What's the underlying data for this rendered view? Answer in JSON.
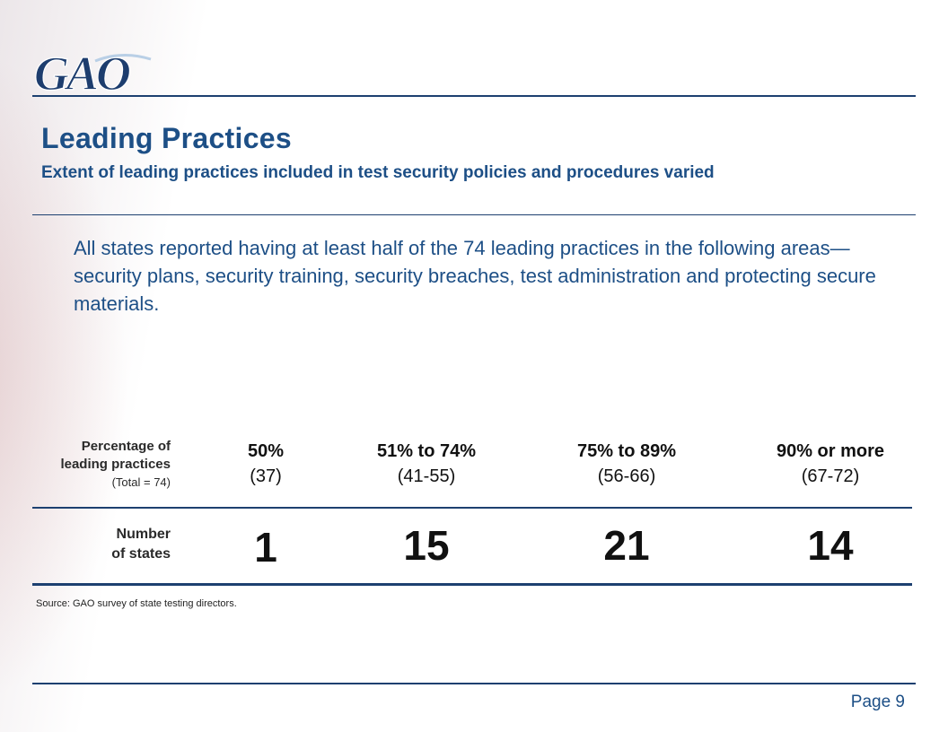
{
  "header": {
    "logo_text": "GAO",
    "title": "Leading Practices",
    "subtitle": "Extent of leading practices included in test security policies and procedures varied"
  },
  "intro": "All states reported having at least half of the 74 leading practices in the following areas—security plans, security training, security breaches, test administration and protecting secure materials.",
  "table": {
    "row1_label_line1": "Percentage of",
    "row1_label_line2": "leading practices",
    "row1_label_note": "(Total = 74)",
    "row2_label_line1": "Number",
    "row2_label_line2": "of states",
    "columns": [
      {
        "pct": "50%",
        "range": "(37)",
        "states": "1"
      },
      {
        "pct": "51% to 74%",
        "range": "(41-55)",
        "states": "15"
      },
      {
        "pct": "75% to 89%",
        "range": "(56-66)",
        "states": "21"
      },
      {
        "pct": "90% or more",
        "range": "(67-72)",
        "states": "14"
      }
    ]
  },
  "source": "Source: GAO survey of state testing directors.",
  "footer": {
    "page": "Page 9"
  },
  "colors": {
    "brand_blue": "#1d4f86",
    "rule_blue": "#1d4070"
  }
}
